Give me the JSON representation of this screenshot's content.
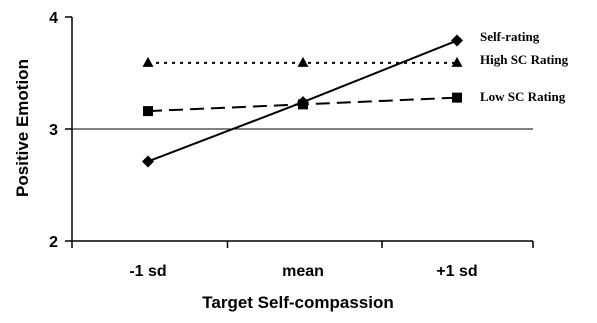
{
  "chart_data": {
    "type": "line",
    "title": "",
    "xlabel": "Target Self-compassion",
    "ylabel": "Positive Emotion",
    "categories": [
      "-1 sd",
      "mean",
      "+1 sd"
    ],
    "ylim": [
      2,
      4
    ],
    "yticks": [
      2,
      3,
      4
    ],
    "grid": false,
    "reference_line_y": 3,
    "legend_placement": "right (labels at line ends)",
    "series": [
      {
        "name": "Self-rating",
        "values": [
          2.71,
          3.24,
          3.79
        ],
        "line_style": "solid",
        "marker": "diamond",
        "color": "#000000"
      },
      {
        "name": "High SC Rating",
        "values": [
          3.59,
          3.59,
          3.59
        ],
        "line_style": "dotted",
        "marker": "triangle",
        "color": "#000000"
      },
      {
        "name": "Low SC Rating",
        "values": [
          3.16,
          3.22,
          3.28
        ],
        "line_style": "dashed",
        "marker": "square",
        "color": "#000000"
      }
    ]
  }
}
